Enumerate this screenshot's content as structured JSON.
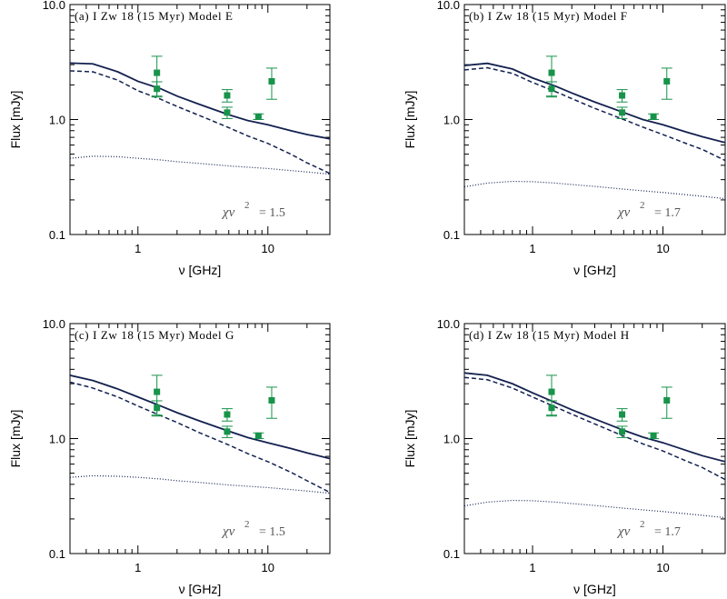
{
  "figure": {
    "colors": {
      "model_line": "#13214f",
      "data_points": "#17934a",
      "axis": "#000000",
      "chi_text": "#555555"
    }
  },
  "chart_data": [
    {
      "type": "line",
      "title": "(a) I Zw 18 (15 Myr) Model E",
      "xlabel": "ν [GHz]",
      "ylabel": "Flux [mJy]",
      "xscale": "log",
      "yscale": "log",
      "xlim": [
        0.3,
        30
      ],
      "ylim": [
        0.1,
        10
      ],
      "xticklabels": [
        "1",
        "10"
      ],
      "yticklabels": [
        "0.1",
        "1.0",
        "10.0"
      ],
      "chi_label": "χν",
      "chi_value": "= 1.5",
      "observed": {
        "x": [
          1.4,
          1.4,
          4.86,
          4.86,
          8.46,
          10.7
        ],
        "y": [
          2.55,
          1.85,
          1.62,
          1.15,
          1.06,
          2.15
        ],
        "yerr_low": [
          0.95,
          0.28,
          0.2,
          0.13,
          0.06,
          0.65
        ],
        "yerr_high": [
          1.0,
          0.28,
          0.2,
          0.13,
          0.06,
          0.65
        ]
      },
      "series": [
        {
          "style": "solid",
          "x": [
            0.3,
            0.45,
            0.7,
            1,
            1.5,
            2,
            3,
            5,
            7,
            10,
            15,
            20,
            30
          ],
          "y": [
            3.1,
            3.05,
            2.6,
            2.15,
            1.85,
            1.6,
            1.35,
            1.1,
            0.98,
            0.9,
            0.8,
            0.74,
            0.68
          ]
        },
        {
          "style": "dashed",
          "x": [
            0.3,
            0.45,
            0.7,
            1,
            1.5,
            2,
            3,
            5,
            7,
            10,
            15,
            20,
            30
          ],
          "y": [
            2.65,
            2.6,
            2.2,
            1.78,
            1.5,
            1.3,
            1.08,
            0.85,
            0.72,
            0.62,
            0.5,
            0.42,
            0.34
          ]
        },
        {
          "style": "dotted",
          "x": [
            0.3,
            0.45,
            0.7,
            1,
            1.5,
            2,
            3,
            5,
            7,
            10,
            15,
            20,
            30
          ],
          "y": [
            0.46,
            0.48,
            0.475,
            0.46,
            0.445,
            0.43,
            0.415,
            0.395,
            0.385,
            0.375,
            0.36,
            0.35,
            0.335
          ]
        }
      ]
    },
    {
      "type": "line",
      "title": "(b) I Zw 18 (15 Myr) Model F",
      "xlabel": "ν [GHz]",
      "ylabel": "Flux [mJy]",
      "xscale": "log",
      "yscale": "log",
      "xlim": [
        0.3,
        30
      ],
      "ylim": [
        0.1,
        10
      ],
      "xticklabels": [
        "1",
        "10"
      ],
      "yticklabels": [
        "0.1",
        "1.0",
        "10.0"
      ],
      "chi_label": "χν",
      "chi_value": "= 1.7",
      "observed": {
        "x": [
          1.4,
          1.4,
          4.86,
          4.86,
          8.46,
          10.7
        ],
        "y": [
          2.55,
          1.85,
          1.62,
          1.15,
          1.06,
          2.15
        ],
        "yerr_low": [
          0.95,
          0.28,
          0.2,
          0.13,
          0.06,
          0.65
        ],
        "yerr_high": [
          1.0,
          0.28,
          0.2,
          0.13,
          0.06,
          0.65
        ]
      },
      "series": [
        {
          "style": "solid",
          "x": [
            0.3,
            0.45,
            0.7,
            1,
            1.5,
            2,
            3,
            5,
            7,
            10,
            15,
            20,
            30
          ],
          "y": [
            2.95,
            3.08,
            2.75,
            2.3,
            1.95,
            1.7,
            1.42,
            1.15,
            1.0,
            0.9,
            0.78,
            0.71,
            0.63
          ]
        },
        {
          "style": "dashed",
          "x": [
            0.3,
            0.45,
            0.7,
            1,
            1.5,
            2,
            3,
            5,
            7,
            10,
            15,
            20,
            30
          ],
          "y": [
            2.7,
            2.82,
            2.52,
            2.1,
            1.75,
            1.52,
            1.25,
            1.0,
            0.86,
            0.74,
            0.62,
            0.55,
            0.44
          ]
        },
        {
          "style": "dotted",
          "x": [
            0.3,
            0.45,
            0.7,
            1,
            1.5,
            2,
            3,
            5,
            7,
            10,
            15,
            20,
            30
          ],
          "y": [
            0.26,
            0.28,
            0.29,
            0.288,
            0.28,
            0.272,
            0.262,
            0.248,
            0.24,
            0.232,
            0.222,
            0.215,
            0.205
          ]
        }
      ]
    },
    {
      "type": "line",
      "title": "(c) I Zw 18 (15 Myr) Model G",
      "xlabel": "ν [GHz]",
      "ylabel": "Flux [mJy]",
      "xscale": "log",
      "yscale": "log",
      "xlim": [
        0.3,
        30
      ],
      "ylim": [
        0.1,
        10
      ],
      "xticklabels": [
        "1",
        "10"
      ],
      "yticklabels": [
        "0.1",
        "1.0",
        "10.0"
      ],
      "chi_label": "χν",
      "chi_value": "= 1.5",
      "observed": {
        "x": [
          1.4,
          1.4,
          4.86,
          4.86,
          8.46,
          10.7
        ],
        "y": [
          2.55,
          1.85,
          1.62,
          1.15,
          1.06,
          2.15
        ],
        "yerr_low": [
          0.95,
          0.28,
          0.2,
          0.13,
          0.06,
          0.65
        ],
        "yerr_high": [
          1.0,
          0.28,
          0.2,
          0.13,
          0.06,
          0.65
        ]
      },
      "series": [
        {
          "style": "solid",
          "x": [
            0.3,
            0.45,
            0.7,
            1,
            1.5,
            2,
            3,
            5,
            7,
            10,
            15,
            20,
            30
          ],
          "y": [
            3.55,
            3.2,
            2.7,
            2.3,
            1.92,
            1.68,
            1.42,
            1.16,
            1.02,
            0.92,
            0.82,
            0.75,
            0.67
          ]
        },
        {
          "style": "dashed",
          "x": [
            0.3,
            0.45,
            0.7,
            1,
            1.5,
            2,
            3,
            5,
            7,
            10,
            15,
            20,
            30
          ],
          "y": [
            3.1,
            2.75,
            2.3,
            1.92,
            1.58,
            1.38,
            1.12,
            0.88,
            0.74,
            0.63,
            0.51,
            0.43,
            0.34
          ]
        },
        {
          "style": "dotted",
          "x": [
            0.3,
            0.45,
            0.7,
            1,
            1.5,
            2,
            3,
            5,
            7,
            10,
            15,
            20,
            30
          ],
          "y": [
            0.46,
            0.475,
            0.47,
            0.46,
            0.445,
            0.43,
            0.415,
            0.395,
            0.385,
            0.375,
            0.36,
            0.35,
            0.335
          ]
        }
      ]
    },
    {
      "type": "line",
      "title": "(d) I Zw 18 (15 Myr) Model H",
      "xlabel": "ν [GHz]",
      "ylabel": "Flux [mJy]",
      "xscale": "log",
      "yscale": "log",
      "xlim": [
        0.3,
        30
      ],
      "ylim": [
        0.1,
        10
      ],
      "xticklabels": [
        "1",
        "10"
      ],
      "yticklabels": [
        "0.1",
        "1.0",
        "10.0"
      ],
      "chi_label": "χν",
      "chi_value": "= 1.7",
      "observed": {
        "x": [
          1.4,
          1.4,
          4.86,
          4.86,
          8.46,
          10.7
        ],
        "y": [
          2.55,
          1.85,
          1.62,
          1.15,
          1.06,
          2.15
        ],
        "yerr_low": [
          0.95,
          0.28,
          0.2,
          0.13,
          0.06,
          0.65
        ],
        "yerr_high": [
          1.0,
          0.28,
          0.2,
          0.13,
          0.06,
          0.65
        ]
      },
      "series": [
        {
          "style": "solid",
          "x": [
            0.3,
            0.45,
            0.7,
            1,
            1.5,
            2,
            3,
            5,
            7,
            10,
            15,
            20,
            30
          ],
          "y": [
            3.72,
            3.55,
            3.0,
            2.5,
            2.05,
            1.78,
            1.48,
            1.18,
            1.03,
            0.92,
            0.79,
            0.71,
            0.63
          ]
        },
        {
          "style": "dashed",
          "x": [
            0.3,
            0.45,
            0.7,
            1,
            1.5,
            2,
            3,
            5,
            7,
            10,
            15,
            20,
            30
          ],
          "y": [
            3.4,
            3.25,
            2.75,
            2.3,
            1.88,
            1.63,
            1.34,
            1.05,
            0.9,
            0.78,
            0.64,
            0.56,
            0.44
          ]
        },
        {
          "style": "dotted",
          "x": [
            0.3,
            0.45,
            0.7,
            1,
            1.5,
            2,
            3,
            5,
            7,
            10,
            15,
            20,
            30
          ],
          "y": [
            0.26,
            0.28,
            0.29,
            0.288,
            0.28,
            0.272,
            0.262,
            0.248,
            0.24,
            0.232,
            0.222,
            0.215,
            0.205
          ]
        }
      ]
    }
  ]
}
